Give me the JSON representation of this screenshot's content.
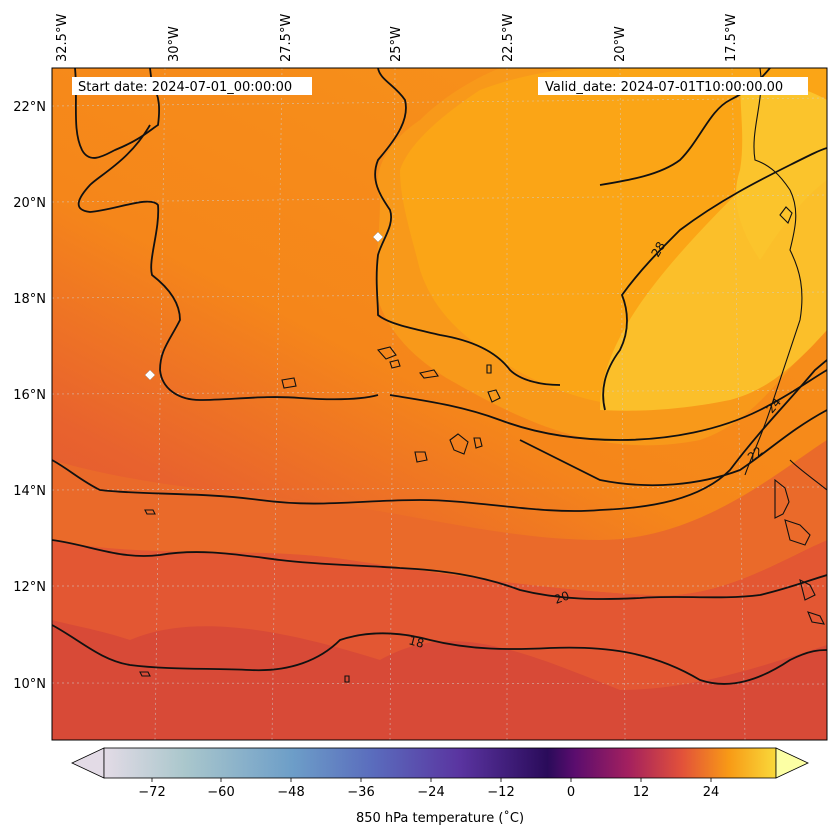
{
  "header": {
    "start_date": "Start date: 2024-07-01_00:00:00",
    "valid_date": "Valid_date: 2024-07-01T10:00:00.00"
  },
  "map": {
    "top_labels": [
      "32.5°W",
      "30°W",
      "27.5°W",
      "25°W",
      "22.5°W",
      "20°W",
      "17.5°W"
    ],
    "left_labels": [
      "22°N",
      "20°N",
      "18°N",
      "16°N",
      "14°N",
      "12°N",
      "10°N"
    ],
    "contour_labels": [
      "28",
      "24",
      "22",
      "20",
      "18"
    ],
    "markers": [
      "white-diamond",
      "white-diamond"
    ],
    "colors": {
      "warm_dark": "#d84a37",
      "warm_mid": "#e8622e",
      "warm_orange": "#f5861a",
      "warm_amber": "#fba516",
      "warm_yellow": "#fbbf2a"
    }
  },
  "colorbar": {
    "ticks": [
      "−72",
      "−60",
      "−48",
      "−36",
      "−24",
      "−12",
      "0",
      "12",
      "24"
    ],
    "label": "850 hPa temperature ( $^\\circ$C)",
    "label_display": "850 hPa temperature (˚C)",
    "colormap": "inferno-like with light extend ends",
    "colors": {
      "c_min": "#e3dbe6",
      "c_a": "#aac7cc",
      "c_b": "#6d9ec8",
      "c_c": "#5a6cbd",
      "c_d": "#5a34a0",
      "c_e": "#2a0b5a",
      "c_f": "#5a0d6e",
      "c_g": "#a3205f",
      "c_h": "#e2513a",
      "c_i": "#f89a16",
      "c_j": "#f9d93a",
      "c_max": "#fcffa4"
    }
  }
}
